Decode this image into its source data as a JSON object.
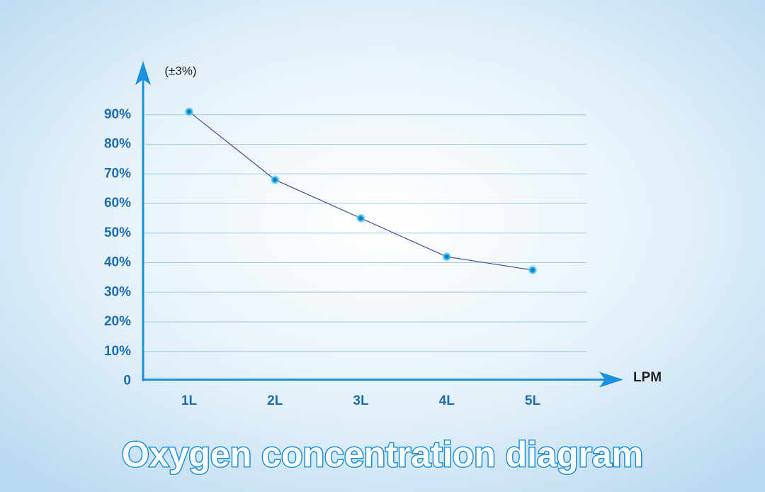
{
  "chart_data": {
    "type": "line",
    "title": "Oxygen concentration diagram",
    "y_label": "(±3%)",
    "x_label": "LPM",
    "categories": [
      "1L",
      "2L",
      "3L",
      "4L",
      "5L"
    ],
    "values": [
      91,
      68,
      55,
      42,
      37.5
    ],
    "color": "#3a4795",
    "marker_color": "#1a9fd8",
    "axis_color": "#1b8fe0",
    "ylim": [
      0,
      100
    ],
    "yticks": [
      0,
      {
        "value": 10,
        "label": "10%"
      },
      {
        "value": 20,
        "label": "20%"
      },
      {
        "value": 30,
        "label": "30%"
      },
      {
        "value": 40,
        "label": "40%"
      },
      {
        "value": 50,
        "label": "50%"
      },
      {
        "value": 60,
        "label": "60%"
      },
      {
        "value": 70,
        "label": "70%"
      },
      {
        "value": 80,
        "label": "80%"
      },
      {
        "value": 90,
        "label": "90%"
      }
    ],
    "grid": true
  }
}
